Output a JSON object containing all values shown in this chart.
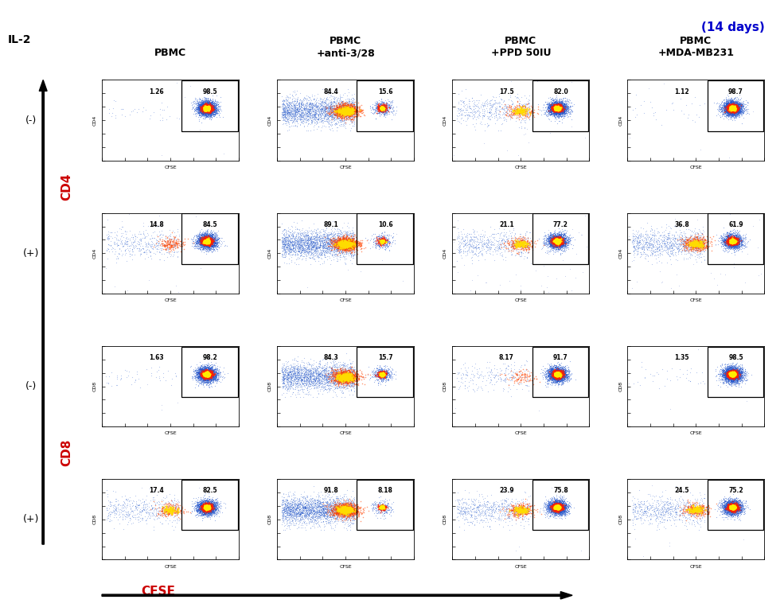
{
  "title": "(14 days)",
  "col_headers": [
    "PBMC",
    "PBMC\n+anti-3/28",
    "PBMC\n+PPD 50IU",
    "PBMC\n+MDA-MB231"
  ],
  "il2_label": "IL-2",
  "cfse_label": "CFSE",
  "cd4_label": "CD4",
  "cd8_label": "CD8",
  "percentages": {
    "cd4_neg": [
      [
        "1.26",
        "98.5"
      ],
      [
        "84.4",
        "15.6"
      ],
      [
        "17.5",
        "82.0"
      ],
      [
        "1.12",
        "98.7"
      ]
    ],
    "cd4_pos": [
      [
        "14.8",
        "84.5"
      ],
      [
        "89.1",
        "10.6"
      ],
      [
        "21.1",
        "77.2"
      ],
      [
        "36.8",
        "61.9"
      ]
    ],
    "cd8_neg": [
      [
        "1.63",
        "98.2"
      ],
      [
        "84.3",
        "15.7"
      ],
      [
        "8.17",
        "91.7"
      ],
      [
        "1.35",
        "98.5"
      ]
    ],
    "cd8_pos": [
      [
        "17.4",
        "82.5"
      ],
      [
        "91.8",
        "8.18"
      ],
      [
        "23.9",
        "75.8"
      ],
      [
        "24.5",
        "75.2"
      ]
    ]
  },
  "title_color": "#0000cc",
  "cd4_color": "#cc0000",
  "cd8_color": "#cc0000",
  "cfse_color": "#cc0000"
}
